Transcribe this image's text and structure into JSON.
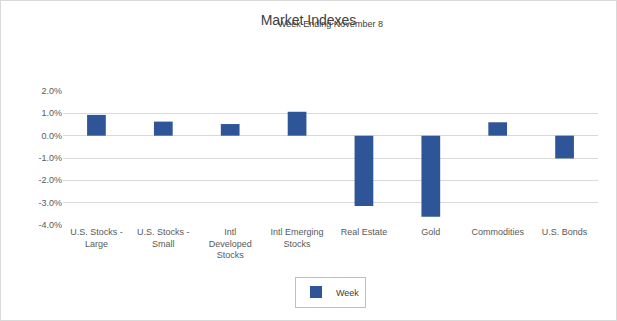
{
  "chart_data": {
    "type": "bar",
    "title": "Market Indexes",
    "subtitle": "Week Ending November 8",
    "categories": [
      "U.S. Stocks - Large",
      "U.S. Stocks - Small",
      "Intl Developed Stocks",
      "Intl Emerging Stocks",
      "Real Estate",
      "Gold",
      "Commodities",
      "U.S. Bonds"
    ],
    "series": [
      {
        "name": "Week",
        "color": "#2e5597",
        "values": [
          0.93,
          0.63,
          0.52,
          1.07,
          -3.15,
          -3.63,
          0.6,
          -1.02
        ]
      }
    ],
    "ylim": [
      -4,
      2
    ],
    "yticks": [
      {
        "value": -4,
        "label": "-4.0%"
      },
      {
        "value": -3,
        "label": "-3.0%"
      },
      {
        "value": -2,
        "label": "-2.0%"
      },
      {
        "value": -1,
        "label": "-1.0%"
      },
      {
        "value": 0,
        "label": "0.0%"
      },
      {
        "value": 1,
        "label": "1.0%"
      },
      {
        "value": 2,
        "label": "2.0%"
      }
    ],
    "grid": true,
    "legend": "bottom"
  }
}
